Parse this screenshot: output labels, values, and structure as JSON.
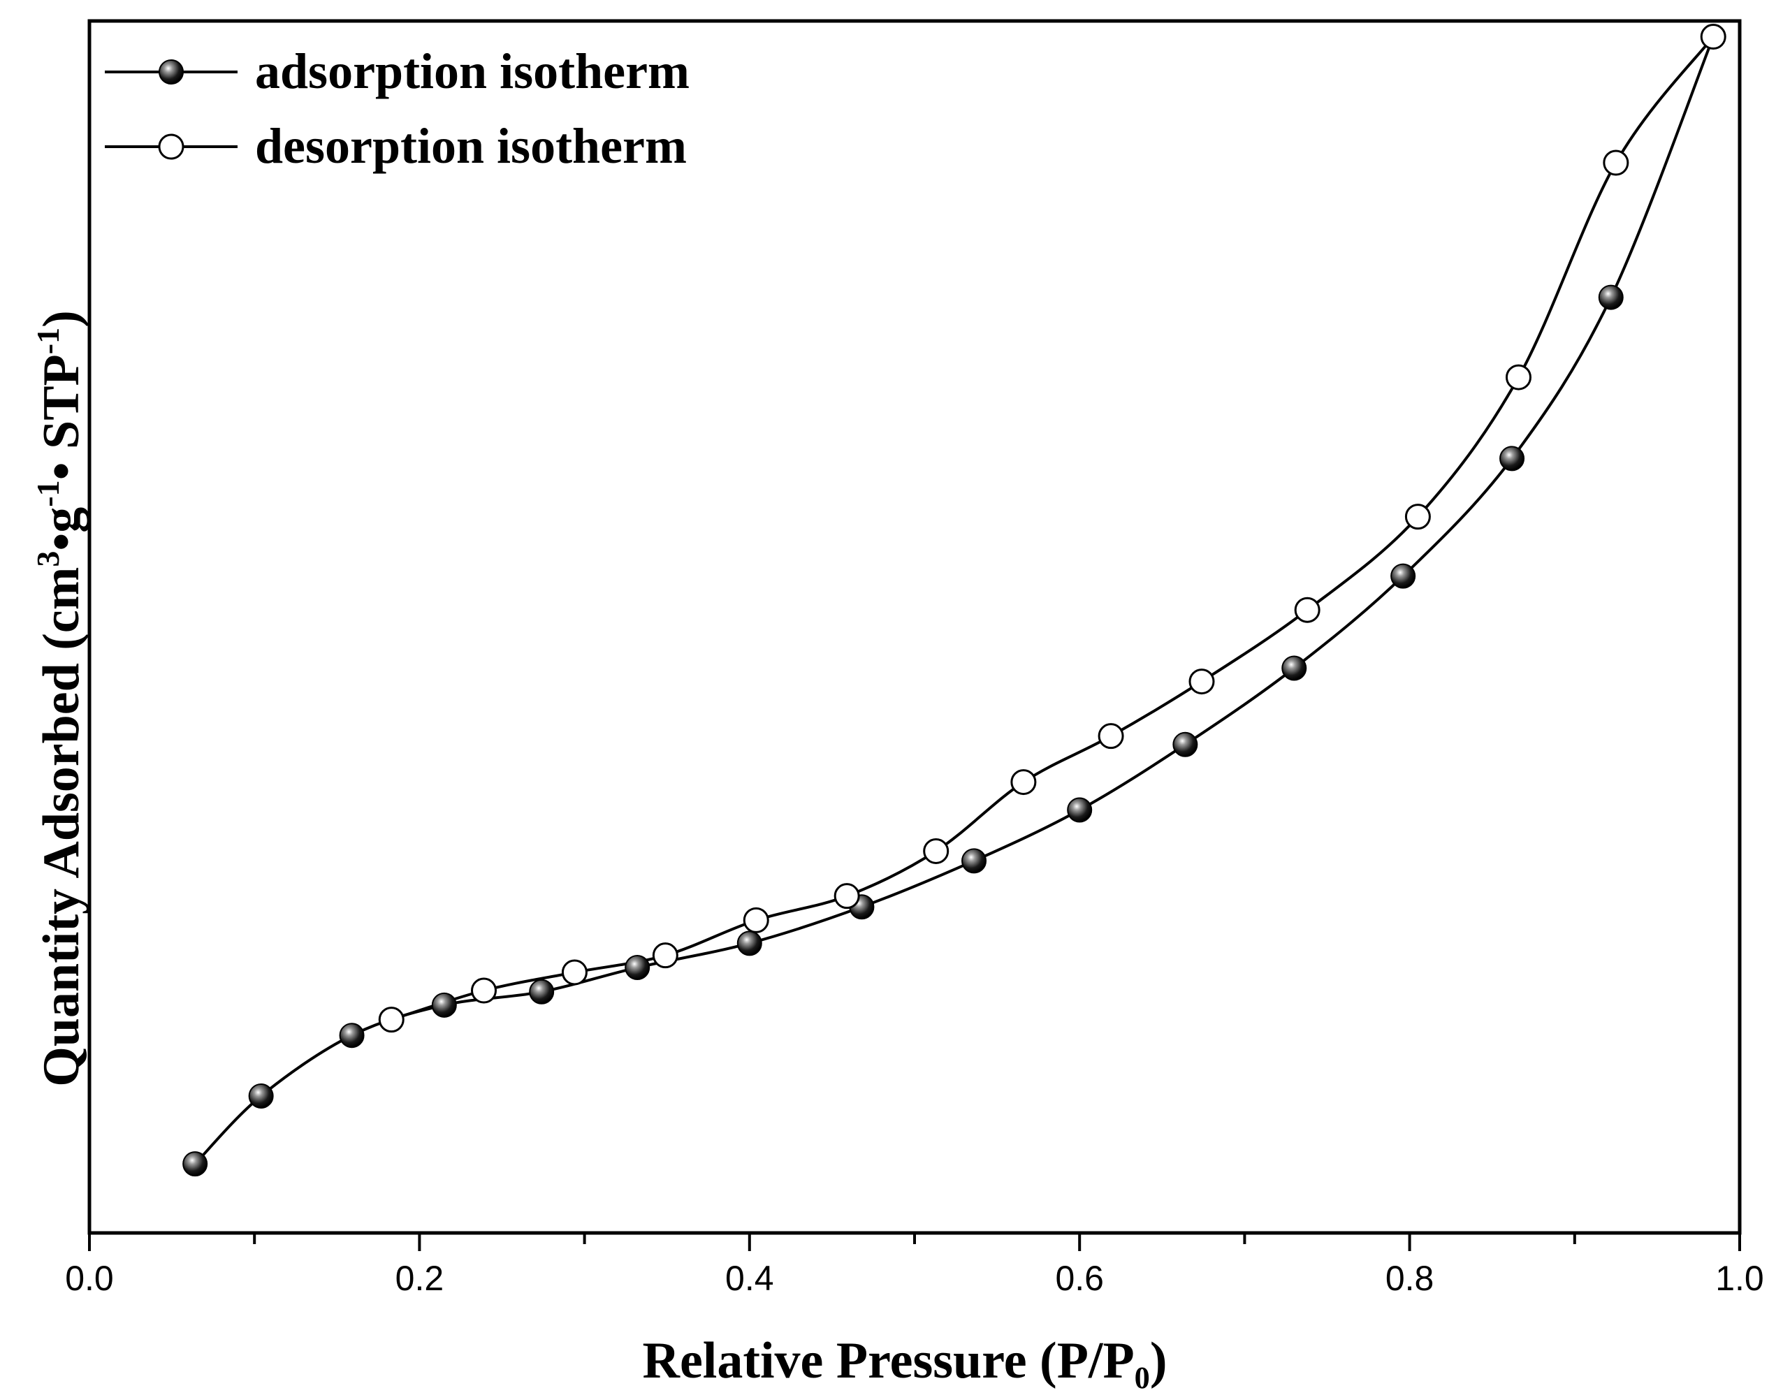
{
  "chart_data": {
    "type": "line",
    "title": "",
    "xlabel": "Relative Pressure (P/P₀)",
    "ylabel_parts": {
      "prefix": "Quantity Adsorbed (cm",
      "sup1": "3",
      "mid": "•g",
      "sup2": "-1",
      "mid2": "• STP",
      "sup3": "-1",
      "suffix": ")"
    },
    "xlim": [
      0.0,
      1.0
    ],
    "ylim": [
      0,
      100
    ],
    "x_ticks": [
      "0.0",
      "0.2",
      "0.4",
      "0.6",
      "0.8",
      "1.0"
    ],
    "x_tick_values": [
      0.0,
      0.2,
      0.4,
      0.6,
      0.8,
      1.0
    ],
    "x_minor_tick_values": [
      0.1,
      0.3,
      0.5,
      0.7,
      0.9
    ],
    "y_ticks": [],
    "legend_position": "top-left",
    "series": [
      {
        "name": "adsorption isotherm",
        "marker": "filled-circle",
        "x": [
          0.064,
          0.104,
          0.159,
          0.215,
          0.274,
          0.332,
          0.4,
          0.468,
          0.536,
          0.6,
          0.664,
          0.73,
          0.796,
          0.862,
          0.922,
          0.984
        ],
        "y": [
          5.7,
          11.3,
          16.3,
          18.8,
          19.9,
          21.9,
          23.9,
          26.9,
          30.7,
          34.9,
          40.3,
          46.6,
          54.2,
          63.9,
          77.2,
          98.7
        ]
      },
      {
        "name": "desorption isotherm",
        "marker": "open-circle",
        "x": [
          0.984,
          0.925,
          0.866,
          0.805,
          0.738,
          0.674,
          0.619,
          0.566,
          0.513,
          0.459,
          0.404,
          0.349,
          0.294,
          0.239,
          0.183
        ],
        "y": [
          98.7,
          88.3,
          70.6,
          59.1,
          51.4,
          45.5,
          41.0,
          37.2,
          31.5,
          27.8,
          25.8,
          22.9,
          21.5,
          20.0,
          17.6
        ]
      }
    ]
  }
}
